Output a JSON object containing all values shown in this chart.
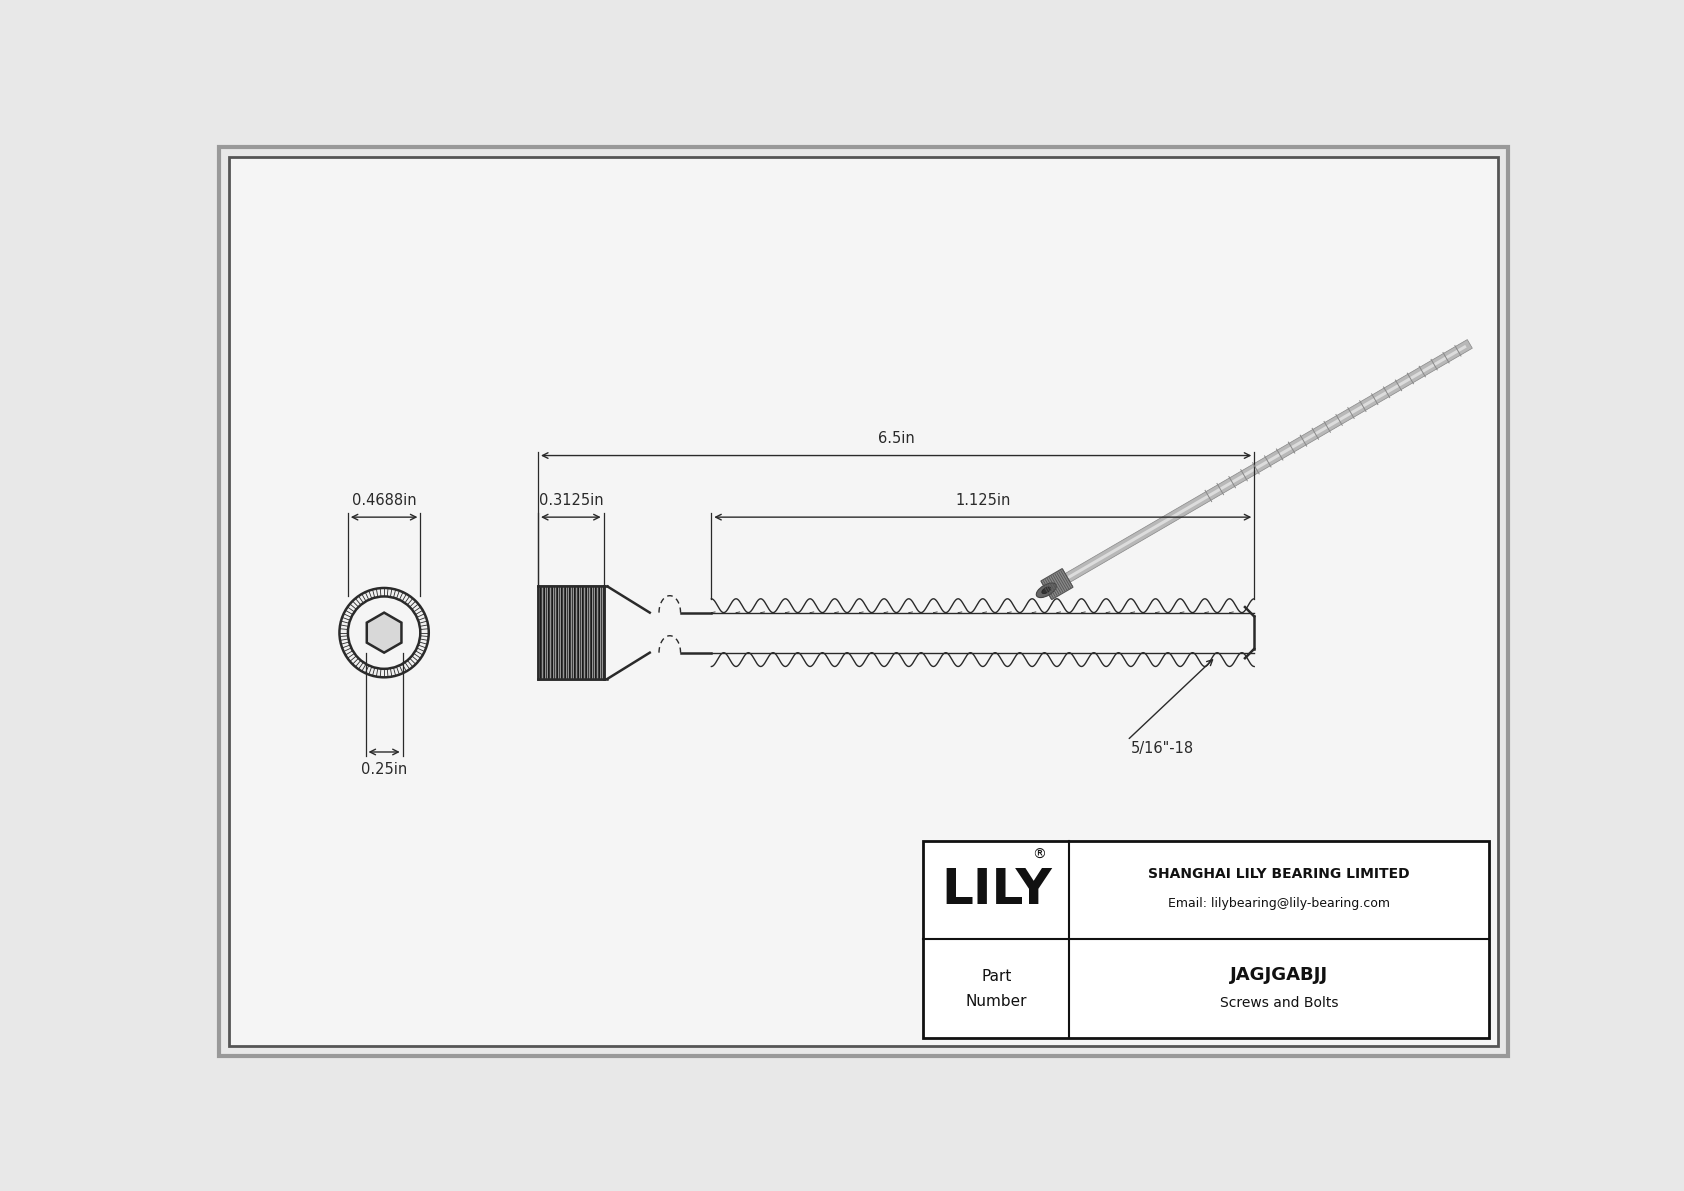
{
  "bg_color": "#e8e8e8",
  "inner_bg": "#f5f5f5",
  "border_color": "#555555",
  "draw_color": "#2a2a2a",
  "dim_color": "#2a2a2a",
  "title": "JAGJGABJJ",
  "subtitle": "Screws and Bolts",
  "company": "SHANGHAI LILY BEARING LIMITED",
  "email": "Email: lilybearing@lily-bearing.com",
  "brand": "LILY",
  "part_label": "Part\nNumber",
  "dim_head_width": "0.4688in",
  "dim_head_height": "0.3125in",
  "dim_length": "6.5in",
  "dim_thread_length": "1.125in",
  "dim_drive": "0.25in",
  "dim_thread_label": "5/16\"-18"
}
